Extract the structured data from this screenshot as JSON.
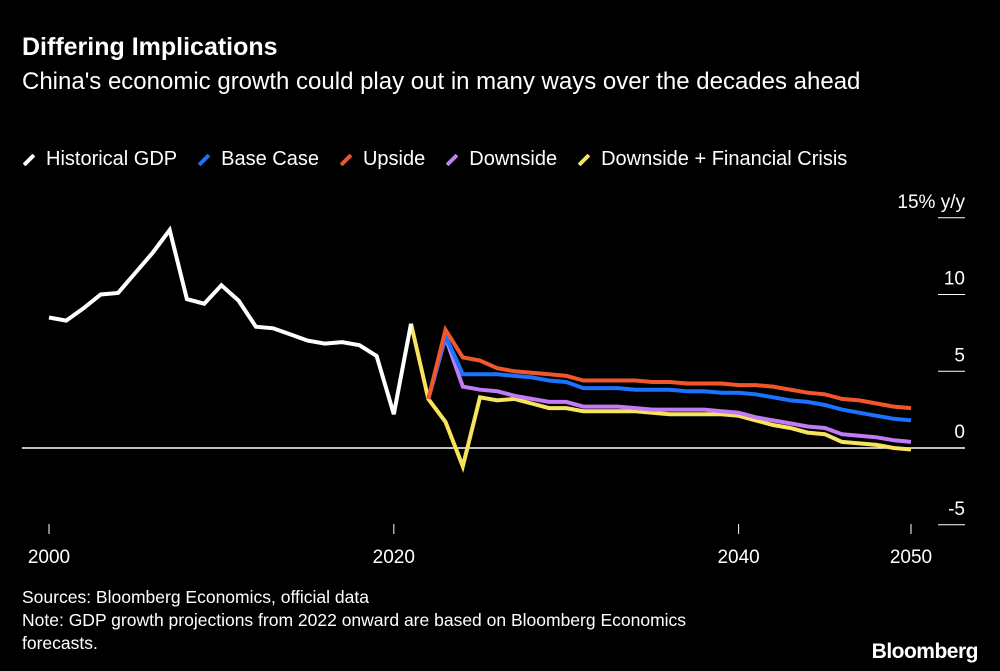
{
  "title": "Differing Implications",
  "subtitle": "China's economic growth could play out in many ways over the decades ahead",
  "footer": {
    "sources": "Sources: Bloomberg Economics, official data",
    "note": "Note: GDP growth projections from 2022 onward are based on Bloomberg Economics forecasts."
  },
  "logo": "Bloomberg",
  "chart_data": {
    "type": "line",
    "title": "Differing Implications",
    "ylabel": "",
    "y_unit_label": "15% y/y",
    "ylim": [
      -5,
      15
    ],
    "xlim": [
      2000,
      2050
    ],
    "y_ticks": [
      {
        "value": 15,
        "label": "15% y/y"
      },
      {
        "value": 10,
        "label": "10"
      },
      {
        "value": 5,
        "label": "5"
      },
      {
        "value": 0,
        "label": "0"
      },
      {
        "value": -5,
        "label": "-5"
      }
    ],
    "x_ticks": [
      {
        "value": 2000,
        "label": "2000"
      },
      {
        "value": 2020,
        "label": "2020"
      },
      {
        "value": 2040,
        "label": "2040"
      },
      {
        "value": 2050,
        "label": "2050"
      }
    ],
    "legend_position": "top-left",
    "grid": false,
    "series": [
      {
        "name": "Historical GDP",
        "color": "#ffffff",
        "x": [
          2000,
          2001,
          2002,
          2003,
          2004,
          2005,
          2006,
          2007,
          2008,
          2009,
          2010,
          2011,
          2012,
          2013,
          2014,
          2015,
          2016,
          2017,
          2018,
          2019,
          2020,
          2021
        ],
        "y": [
          8.5,
          8.3,
          9.1,
          10.0,
          10.1,
          11.4,
          12.7,
          14.2,
          9.7,
          9.4,
          10.6,
          9.6,
          7.9,
          7.8,
          7.4,
          7.0,
          6.8,
          6.9,
          6.7,
          6.0,
          2.2,
          8.1
        ]
      },
      {
        "name": "Base Case",
        "color": "#1a72ff",
        "x": [
          2022,
          2023,
          2024,
          2025,
          2026,
          2027,
          2028,
          2029,
          2030,
          2031,
          2032,
          2033,
          2034,
          2035,
          2036,
          2037,
          2038,
          2039,
          2040,
          2041,
          2042,
          2043,
          2044,
          2045,
          2046,
          2047,
          2048,
          2049,
          2050
        ],
        "y": [
          3.2,
          7.3,
          4.8,
          4.8,
          4.8,
          4.7,
          4.6,
          4.4,
          4.3,
          3.9,
          3.9,
          3.9,
          3.8,
          3.8,
          3.8,
          3.7,
          3.7,
          3.6,
          3.6,
          3.5,
          3.3,
          3.1,
          3.0,
          2.8,
          2.5,
          2.3,
          2.1,
          1.9,
          1.8
        ]
      },
      {
        "name": "Upside",
        "color": "#f2572b",
        "x": [
          2022,
          2023,
          2024,
          2025,
          2026,
          2027,
          2028,
          2029,
          2030,
          2031,
          2032,
          2033,
          2034,
          2035,
          2036,
          2037,
          2038,
          2039,
          2040,
          2041,
          2042,
          2043,
          2044,
          2045,
          2046,
          2047,
          2048,
          2049,
          2050
        ],
        "y": [
          3.2,
          7.7,
          5.9,
          5.7,
          5.2,
          5.0,
          4.9,
          4.8,
          4.7,
          4.4,
          4.4,
          4.4,
          4.4,
          4.3,
          4.3,
          4.2,
          4.2,
          4.2,
          4.1,
          4.1,
          4.0,
          3.8,
          3.6,
          3.5,
          3.2,
          3.1,
          2.9,
          2.7,
          2.6
        ]
      },
      {
        "name": "Downside",
        "color": "#c17bf5",
        "x": [
          2022,
          2023,
          2024,
          2025,
          2026,
          2027,
          2028,
          2029,
          2030,
          2031,
          2032,
          2033,
          2034,
          2035,
          2036,
          2037,
          2038,
          2039,
          2040,
          2041,
          2042,
          2043,
          2044,
          2045,
          2046,
          2047,
          2048,
          2049,
          2050
        ],
        "y": [
          3.2,
          7.2,
          4.0,
          3.8,
          3.7,
          3.4,
          3.2,
          3.0,
          3.0,
          2.7,
          2.7,
          2.7,
          2.6,
          2.5,
          2.5,
          2.5,
          2.5,
          2.4,
          2.3,
          2.0,
          1.8,
          1.6,
          1.4,
          1.3,
          0.9,
          0.8,
          0.7,
          0.5,
          0.4
        ]
      },
      {
        "name": "Downside + Financial Crisis",
        "color": "#f7e45c",
        "x": [
          2021,
          2022,
          2023,
          2024,
          2025,
          2026,
          2027,
          2028,
          2029,
          2030,
          2031,
          2032,
          2033,
          2034,
          2035,
          2036,
          2037,
          2038,
          2039,
          2040,
          2041,
          2042,
          2043,
          2044,
          2045,
          2046,
          2047,
          2048,
          2049,
          2050
        ],
        "y": [
          8.1,
          3.2,
          1.7,
          -1.2,
          3.3,
          3.1,
          3.2,
          2.9,
          2.6,
          2.6,
          2.4,
          2.4,
          2.4,
          2.4,
          2.3,
          2.2,
          2.2,
          2.2,
          2.2,
          2.1,
          1.8,
          1.5,
          1.3,
          1.0,
          0.9,
          0.4,
          0.3,
          0.2,
          0.0,
          -0.1
        ]
      }
    ]
  }
}
